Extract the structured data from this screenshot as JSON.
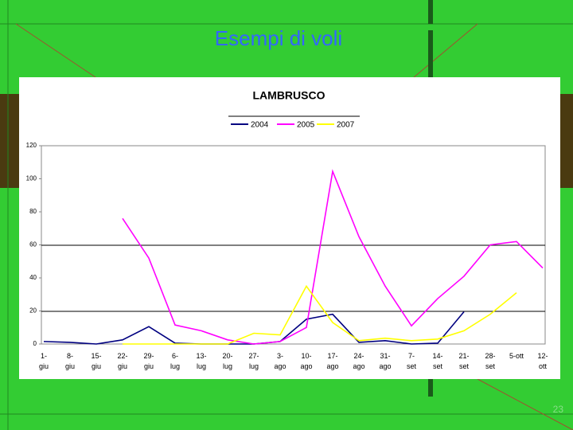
{
  "slide": {
    "title": "Esempi di voli",
    "page_number": "23"
  },
  "chart_data": {
    "type": "line",
    "title": "LAMBRUSCO",
    "categories": [
      "1-\ngiu",
      "8-\ngiu",
      "15-\ngiu",
      "22-\ngiu",
      "29-\ngiu",
      "6-\nlug",
      "13-\nlug",
      "20-\nlug",
      "27-\nlug",
      "3-\nago",
      "10-\nago",
      "17-\nago",
      "24-\nago",
      "31-\nago",
      "7-\nset",
      "14-\nset",
      "21-\nset",
      "28-\nset",
      "5-ott",
      "12-\nott"
    ],
    "series": [
      {
        "name": "2004",
        "color": "#000080",
        "values": [
          1.5,
          1,
          0,
          2.5,
          10.5,
          0.5,
          0,
          0,
          0,
          1.5,
          15,
          18,
          1,
          2,
          0,
          0.5,
          19.5,
          null,
          null,
          null
        ]
      },
      {
        "name": "2005",
        "color": "#ff00ff",
        "values": [
          null,
          null,
          null,
          76,
          52,
          11.5,
          8,
          2.5,
          0,
          1.5,
          10,
          104.5,
          65,
          35,
          11,
          27.5,
          41,
          60,
          62,
          46
        ]
      },
      {
        "name": "2007",
        "color": "#ffff00",
        "values": [
          null,
          null,
          null,
          0,
          0,
          0,
          0,
          0,
          6.5,
          5.5,
          35,
          13,
          2,
          3.5,
          2,
          3,
          8,
          18,
          31,
          null
        ]
      }
    ],
    "ylim": [
      0,
      120
    ],
    "yticks": [
      0,
      20,
      40,
      60,
      80,
      100,
      120
    ]
  }
}
